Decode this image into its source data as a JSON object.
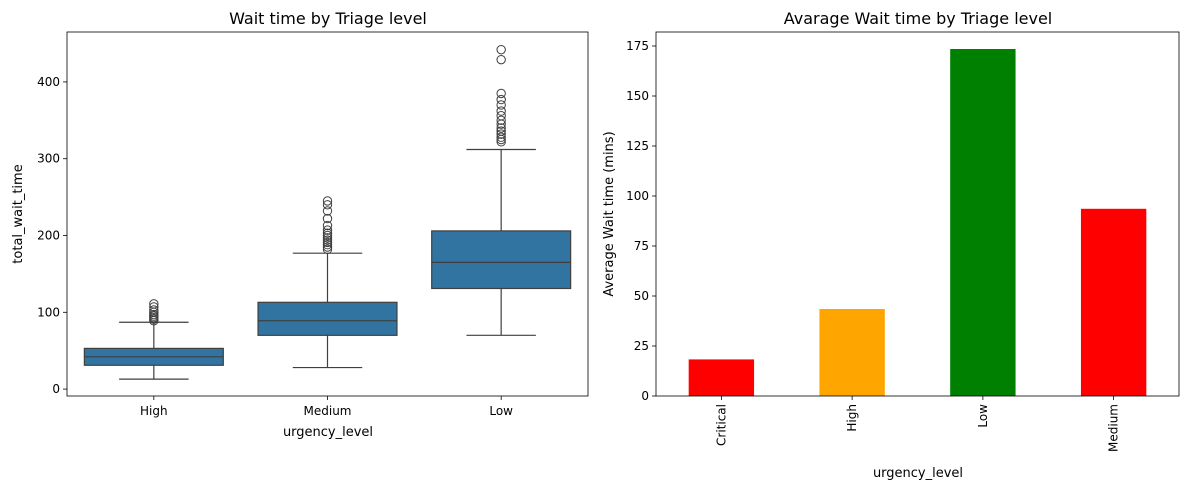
{
  "chart_data": [
    {
      "type": "box",
      "title": "Wait time by Triage level",
      "xlabel": "urgency_level",
      "ylabel": "total_wait_time",
      "ylim": [
        -9,
        465
      ],
      "yticks": [
        0,
        100,
        200,
        300,
        400
      ],
      "categories": [
        "High",
        "Medium",
        "Low"
      ],
      "color": "#3274a1",
      "boxes": [
        {
          "category": "High",
          "whisker_low": 13,
          "q1": 31,
          "median": 42,
          "q3": 53,
          "whisker_high": 87,
          "outliers": [
            89,
            91,
            93,
            95,
            97,
            100,
            103,
            107,
            111
          ]
        },
        {
          "category": "Medium",
          "whisker_low": 28,
          "q1": 70,
          "median": 89,
          "q3": 113,
          "whisker_high": 177,
          "outliers": [
            182,
            185,
            188,
            191,
            194,
            197,
            200,
            203,
            207,
            213,
            222,
            232,
            240,
            245
          ]
        },
        {
          "category": "Low",
          "whisker_low": 70,
          "q1": 131,
          "median": 165,
          "q3": 206,
          "whisker_high": 312,
          "outliers": [
            322,
            325,
            328,
            332,
            336,
            340,
            345,
            350,
            356,
            362,
            370,
            377,
            385,
            429,
            442
          ]
        }
      ],
      "grid": false
    },
    {
      "type": "bar",
      "title": "Avarage Wait time by Triage level",
      "xlabel": "urgency_level",
      "ylabel": "Average Wait time (mins)",
      "ylim": [
        0,
        182
      ],
      "yticks": [
        0,
        25,
        50,
        75,
        100,
        125,
        150,
        175
      ],
      "categories": [
        "Critical",
        "High",
        "Low",
        "Medium"
      ],
      "values": [
        18.3,
        43.5,
        173.5,
        93.6
      ],
      "colors": [
        "#ff0000",
        "#ffa500",
        "#008000",
        "#ff0000"
      ],
      "grid": false
    }
  ]
}
